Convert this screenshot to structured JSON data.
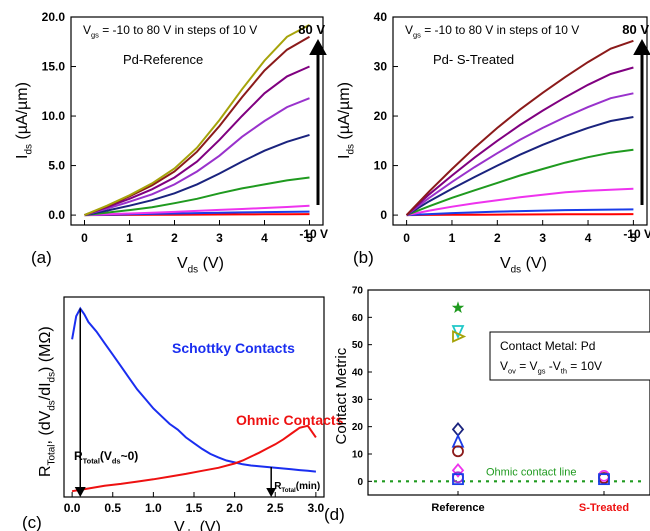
{
  "chart_data": [
    {
      "id": "a",
      "type": "line",
      "panel_label": "(a)",
      "xlabel": {
        "main": "V",
        "sub": "ds",
        "tail": " (V)"
      },
      "ylabel": {
        "main": "I",
        "sub": "ds",
        "tail": " (µA/µm)"
      },
      "xlim": [
        -0.3,
        5.3
      ],
      "ylim": [
        -1,
        20
      ],
      "xticks": [
        0,
        1,
        2,
        3,
        4,
        5
      ],
      "xtick_labels": [
        "0",
        "1",
        "2",
        "3",
        "4",
        "5"
      ],
      "yticks": [
        0,
        5,
        10,
        15,
        20
      ],
      "ytick_labels": [
        "0.0",
        "5.0",
        "10.0",
        "15.0",
        "20.0"
      ],
      "annotations": {
        "condition": {
          "pre": "V",
          "sub": "gs",
          "post": " = -10 to 80 V in steps of 10 V"
        },
        "sample": "Pd-Reference",
        "arrow_top": "80 V",
        "arrow_bottom": "-10 V"
      },
      "x": [
        0,
        0.5,
        1,
        1.5,
        2,
        2.5,
        3,
        3.5,
        4,
        4.5,
        5
      ],
      "series": [
        {
          "color": "#ff0000",
          "values": [
            0,
            0.01,
            0.02,
            0.03,
            0.04,
            0.05,
            0.06,
            0.07,
            0.08,
            0.09,
            0.1
          ]
        },
        {
          "color": "#1a3ce8",
          "values": [
            0,
            0.04,
            0.08,
            0.12,
            0.16,
            0.2,
            0.24,
            0.27,
            0.3,
            0.32,
            0.35
          ]
        },
        {
          "color": "#ee33ee",
          "values": [
            0,
            0.08,
            0.16,
            0.24,
            0.32,
            0.42,
            0.52,
            0.62,
            0.72,
            0.82,
            0.95
          ]
        },
        {
          "color": "#1f9a1f",
          "values": [
            0,
            0.25,
            0.5,
            0.8,
            1.2,
            1.65,
            2.2,
            2.7,
            3.1,
            3.5,
            3.8
          ]
        },
        {
          "color": "#1a237e",
          "values": [
            0,
            0.45,
            0.95,
            1.5,
            2.2,
            3.1,
            4.2,
            5.4,
            6.5,
            7.4,
            8.1
          ]
        },
        {
          "color": "#9932cc",
          "values": [
            0,
            0.65,
            1.35,
            2.1,
            3.1,
            4.4,
            6.0,
            7.9,
            9.5,
            10.9,
            11.8
          ]
        },
        {
          "color": "#800080",
          "values": [
            0,
            0.8,
            1.65,
            2.6,
            3.8,
            5.4,
            7.6,
            10.0,
            12.3,
            14.0,
            15.0
          ]
        },
        {
          "color": "#8b1a1a",
          "values": [
            0,
            0.9,
            1.9,
            3.0,
            4.4,
            6.4,
            9.0,
            11.9,
            14.6,
            16.7,
            18.0
          ]
        },
        {
          "color": "#a6a30a",
          "values": [
            0,
            0.95,
            2.0,
            3.2,
            4.7,
            6.8,
            9.6,
            12.7,
            15.6,
            18.0,
            19.2
          ]
        }
      ]
    },
    {
      "id": "b",
      "type": "line",
      "panel_label": "(b)",
      "xlabel": {
        "main": "V",
        "sub": "ds",
        "tail": " (V)"
      },
      "ylabel": {
        "main": "I",
        "sub": "ds",
        "tail": " (µA/µm)"
      },
      "xlim": [
        -0.3,
        5.3
      ],
      "ylim": [
        -2,
        40
      ],
      "xticks": [
        0,
        1,
        2,
        3,
        4,
        5
      ],
      "xtick_labels": [
        "0",
        "1",
        "2",
        "3",
        "4",
        "5"
      ],
      "yticks": [
        0,
        10,
        20,
        30,
        40
      ],
      "ytick_labels": [
        "0",
        "10",
        "20",
        "30",
        "40"
      ],
      "annotations": {
        "condition": {
          "pre": "V",
          "sub": "gs",
          "post": " = -10 to 80 V in steps of 10 V"
        },
        "sample": "Pd- S-Treated",
        "arrow_top": "80 V",
        "arrow_bottom": "-10 V"
      },
      "x": [
        0,
        0.5,
        1,
        1.5,
        2,
        2.5,
        3,
        3.5,
        4,
        4.5,
        5
      ],
      "series": [
        {
          "color": "#ff0000",
          "values": [
            0,
            0.03,
            0.06,
            0.08,
            0.1,
            0.12,
            0.14,
            0.16,
            0.17,
            0.18,
            0.2
          ]
        },
        {
          "color": "#1a3ce8",
          "values": [
            0,
            0.2,
            0.4,
            0.55,
            0.7,
            0.8,
            0.9,
            1.0,
            1.05,
            1.1,
            1.15
          ]
        },
        {
          "color": "#ee33ee",
          "values": [
            0,
            0.9,
            1.7,
            2.4,
            3.0,
            3.6,
            4.1,
            4.6,
            4.9,
            5.1,
            5.3
          ]
        },
        {
          "color": "#1f9a1f",
          "values": [
            0,
            1.8,
            3.5,
            5.0,
            6.5,
            8.0,
            9.3,
            10.6,
            11.7,
            12.6,
            13.2
          ]
        },
        {
          "color": "#1a237e",
          "values": [
            0,
            2.8,
            5.3,
            7.7,
            10.0,
            12.2,
            14.2,
            16.0,
            17.6,
            19.0,
            19.8
          ]
        },
        {
          "color": "#9932cc",
          "values": [
            0,
            3.5,
            6.7,
            9.7,
            12.5,
            15.2,
            17.6,
            19.8,
            21.8,
            23.6,
            24.6
          ]
        },
        {
          "color": "#800080",
          "values": [
            0,
            4.2,
            8.0,
            11.6,
            15.0,
            18.2,
            21.1,
            23.8,
            26.3,
            28.5,
            29.8
          ]
        },
        {
          "color": "#8b1a1a",
          "values": [
            0,
            4.8,
            9.3,
            13.6,
            17.6,
            21.3,
            24.7,
            27.9,
            30.9,
            33.6,
            35.2
          ]
        }
      ]
    },
    {
      "id": "c",
      "type": "line",
      "panel_label": "(c)",
      "xlabel": {
        "main": "V",
        "sub": "ds",
        "tail": " (V)"
      },
      "ylabel_text": "R_Total, (dV_ds/dI_ds) (MΩ)",
      "xlim": [
        -0.1,
        3.1
      ],
      "ylim": [
        0,
        52
      ],
      "xticks": [
        0,
        0.5,
        1.0,
        1.5,
        2.0,
        2.5,
        3.0
      ],
      "xtick_labels": [
        "0.0",
        "0.5",
        "1.0",
        "1.5",
        "2.0",
        "2.5",
        "3.0"
      ],
      "annotations": {
        "schottky": "Schottky Contacts",
        "ohmic": "Ohmic Contacts",
        "rtotal_zero": "R_Total(V_ds~0)",
        "rtotal_min": "R_Total(min)"
      },
      "series": [
        {
          "name": "Schottky Contacts",
          "color": "#1a2ef0",
          "x": [
            0,
            0.05,
            0.1,
            0.15,
            0.2,
            0.3,
            0.4,
            0.5,
            0.6,
            0.7,
            0.8,
            0.9,
            1.0,
            1.1,
            1.2,
            1.3,
            1.4,
            1.5,
            1.6,
            1.7,
            1.8,
            1.9,
            2.0,
            2.1,
            2.2,
            2.3,
            2.4,
            2.5,
            2.6,
            2.7,
            2.8,
            2.9,
            3.0
          ],
          "values": [
            41,
            47,
            49,
            47.5,
            45.5,
            43,
            40,
            37,
            34,
            31,
            28,
            25.5,
            23,
            21,
            19,
            17.5,
            15.5,
            14,
            12.5,
            11.2,
            10.3,
            9.5,
            9.0,
            8.5,
            8.2,
            8.0,
            7.8,
            7.6,
            7.4,
            7.2,
            7.0,
            6.8,
            6.6
          ]
        },
        {
          "name": "Ohmic Contacts",
          "color": "#ee1111",
          "x": [
            0,
            0.2,
            0.4,
            0.6,
            0.8,
            1.0,
            1.2,
            1.4,
            1.6,
            1.8,
            2.0,
            2.1,
            2.2,
            2.3,
            2.4,
            2.5,
            2.6,
            2.7,
            2.8,
            2.9,
            3.0
          ],
          "values": [
            1.5,
            2.2,
            2.9,
            3.4,
            4.0,
            4.6,
            5.3,
            6.0,
            6.8,
            7.6,
            8.7,
            9.5,
            10.5,
            11.5,
            12.6,
            13.7,
            15.0,
            16.5,
            18.0,
            18.5,
            15.5
          ]
        }
      ]
    },
    {
      "id": "d",
      "type": "scatter",
      "panel_label": "(d)",
      "ylabel": "Contact Metric",
      "ylim": [
        -5,
        70
      ],
      "yticks": [
        0,
        10,
        20,
        30,
        40,
        50,
        60,
        70
      ],
      "ytick_labels": [
        "0",
        "10",
        "20",
        "30",
        "40",
        "50",
        "60",
        "70"
      ],
      "categories": [
        "Reference",
        "S-Treated"
      ],
      "category_colors": [
        "#000000",
        "#ee1111"
      ],
      "annotations": {
        "legend_line1": "Contact Metal: Pd",
        "legend_line2": {
          "a": "V",
          "as": "ov",
          "b": " = V",
          "bs": "gs",
          "c": " -V",
          "cs": "th",
          "d": " = 10V"
        },
        "ohmic_line": "Ohmic contact line"
      },
      "ohmic_line_y": 0,
      "points": [
        {
          "category": 0,
          "y": 63.5,
          "marker": "star",
          "color": "#1f9a1f"
        },
        {
          "category": 0,
          "y": 55,
          "marker": "tri-down",
          "color": "#1ec8c8"
        },
        {
          "category": 0,
          "y": 53,
          "marker": "tri-right",
          "color": "#a6a30a"
        },
        {
          "category": 0,
          "y": 19,
          "marker": "diamond",
          "color": "#1a237e"
        },
        {
          "category": 0,
          "y": 14.5,
          "marker": "tri-up",
          "color": "#1a3ce8"
        },
        {
          "category": 0,
          "y": 11,
          "marker": "circle",
          "color": "#8b1a1a"
        },
        {
          "category": 0,
          "y": 4,
          "marker": "diamond",
          "color": "#ee33ee"
        },
        {
          "category": 0,
          "y": 1.5,
          "marker": "circle",
          "color": "#9932cc"
        },
        {
          "category": 0,
          "y": 0.8,
          "marker": "square",
          "color": "#1a3ce8"
        },
        {
          "category": 1,
          "y": 2.0,
          "marker": "circle",
          "color": "#ee33ee"
        },
        {
          "category": 1,
          "y": 1.2,
          "marker": "circle",
          "color": "#8b1a1a"
        },
        {
          "category": 1,
          "y": 0.8,
          "marker": "square",
          "color": "#1a3ce8"
        }
      ]
    }
  ]
}
